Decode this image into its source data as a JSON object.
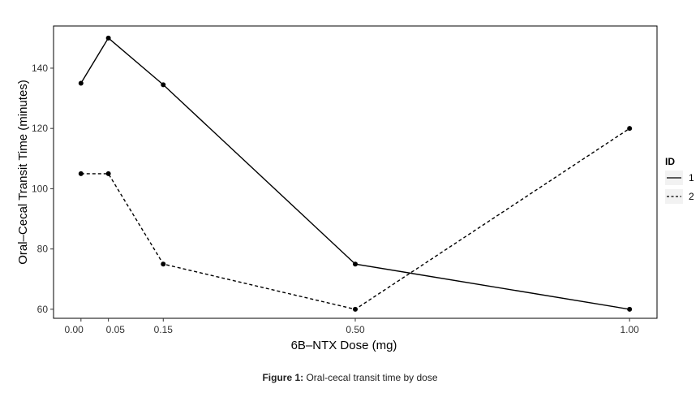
{
  "chart_data": {
    "type": "line",
    "xlabel": "6B–NTX Dose (mg)",
    "ylabel": "Oral–Cecal Transit Time (minutes)",
    "x": [
      0.0,
      0.05,
      0.15,
      0.5,
      1.0
    ],
    "x_tick_labels": [
      "0.00",
      "0.05",
      "0.15",
      "0.50",
      "1.00"
    ],
    "y_ticks": [
      60,
      80,
      100,
      120,
      140
    ],
    "xlim": [
      -0.05,
      1.05
    ],
    "ylim": [
      57,
      154
    ],
    "grid": false,
    "legend": {
      "title": "ID",
      "position": "right"
    },
    "series": [
      {
        "name": "1",
        "line_style": "solid",
        "color": "#000000",
        "values": [
          135,
          150,
          134.5,
          75,
          60
        ]
      },
      {
        "name": "2",
        "line_style": "dashed",
        "color": "#000000",
        "values": [
          105,
          105,
          75,
          60,
          120
        ]
      }
    ]
  },
  "caption": {
    "label": "Figure 1:",
    "text": "Oral-cecal transit time by dose"
  }
}
